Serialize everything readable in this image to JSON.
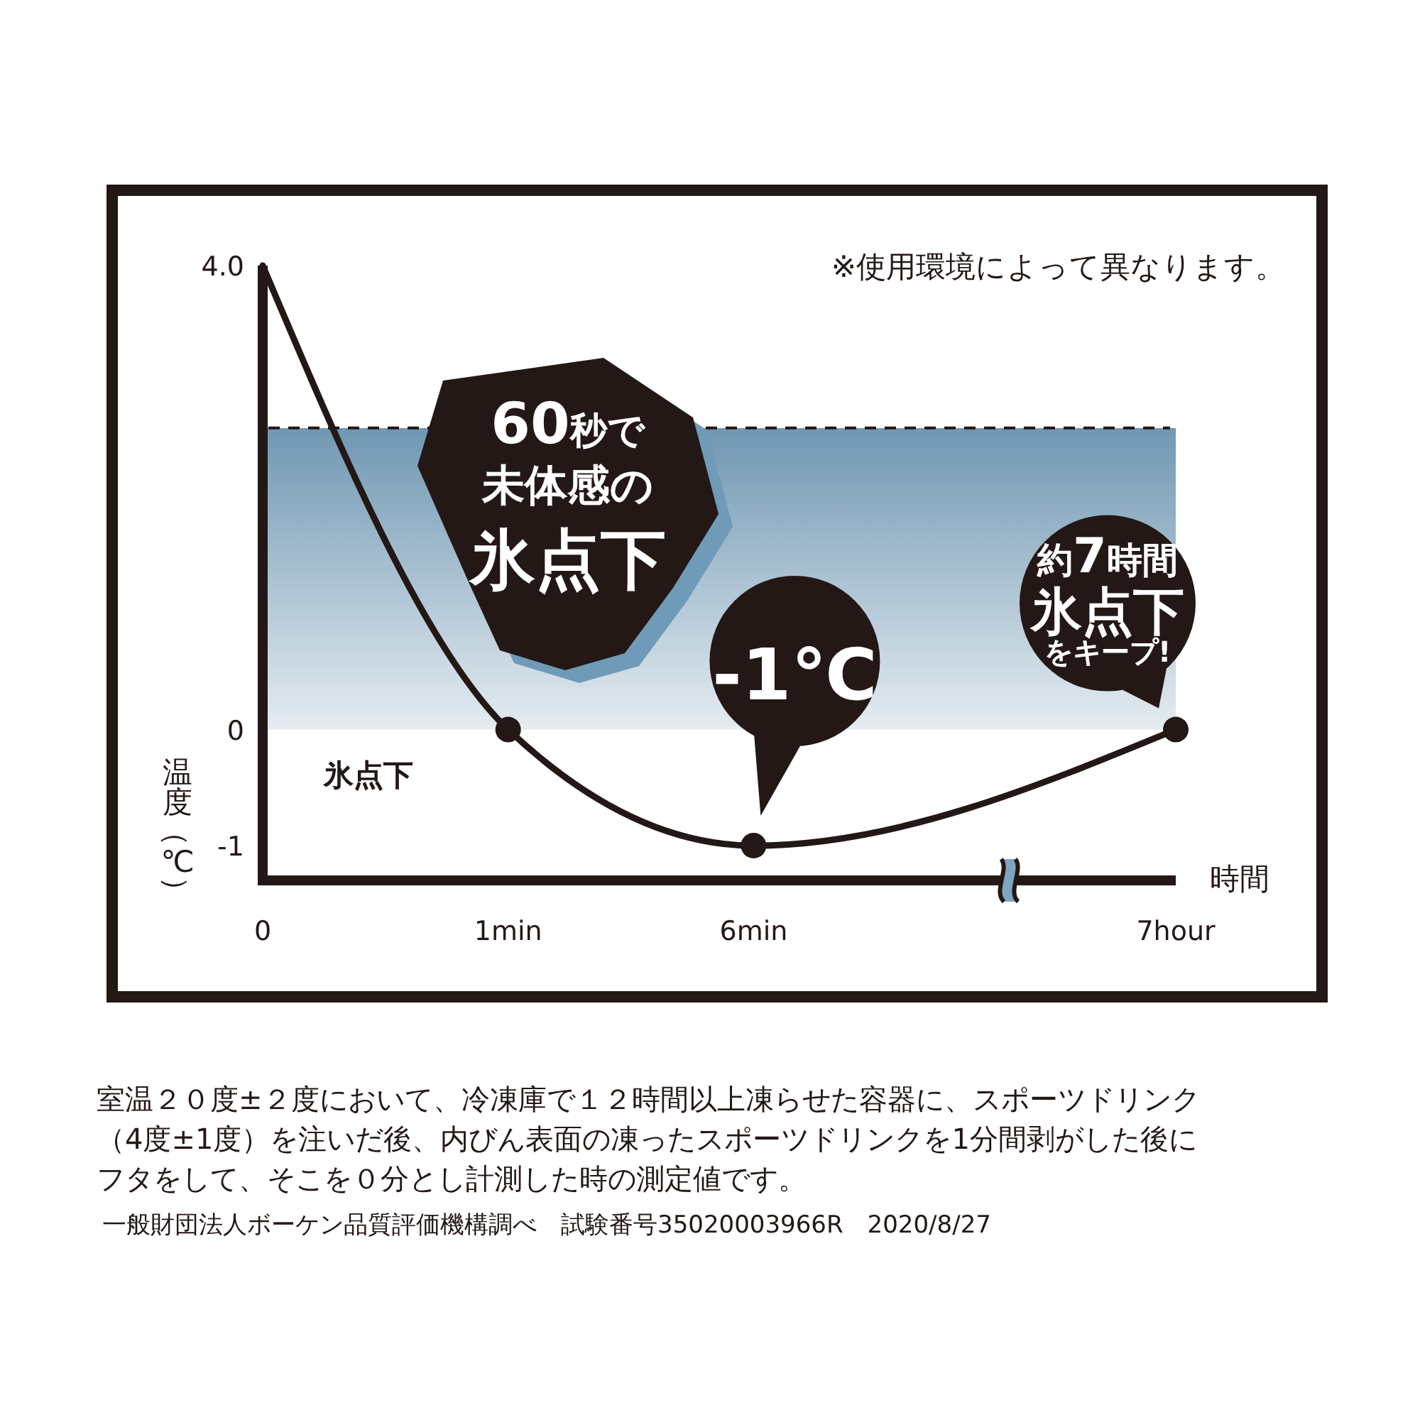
{
  "chart_data": {
    "type": "line",
    "categories": [
      "0",
      "1min",
      "6min",
      "7hour"
    ],
    "series": [
      {
        "type": "line",
        "color": "#231815",
        "values": [
          4.0,
          0,
          -1,
          0
        ]
      },
      {
        "type": "scatter",
        "color": "#231815",
        "x": [
          "1min",
          "6min",
          "7hour"
        ],
        "values": [
          0,
          -1,
          0
        ],
        "marker": "circle"
      }
    ],
    "ylim": [
      -1.3,
      4.0
    ],
    "yticks": [
      {
        "value": 4,
        "label": "4.0"
      },
      0,
      -1
    ],
    "xlabel": "時間",
    "ylabel": "温度（℃）",
    "bands": [
      {
        "axis": "y",
        "from": 0,
        "to": 2.6,
        "color": "#7097b2"
      }
    ],
    "ref_lines": [
      {
        "axis": "y",
        "value": 2.6,
        "line_style": "dashed",
        "color": "#231815"
      }
    ],
    "annotations": [
      "60秒で未体感の氷点下",
      {
        "text": "-1℃",
        "x": "6min",
        "y": -1
      },
      {
        "text": "約7時間氷点下をキープ!",
        "x": "7hour",
        "y": 0
      },
      "※使用環境によって異なります。",
      "氷点下",
      "室温２０度±２度において、冷凍庫で１２時間以上凍らせた容器に、スポーツドリンク（4度±1度）を注いだ後、内びん表面の凍ったスポーツドリンクを1分間剥がした後にフタをして、そこを０分とし計測した時の測定値です。",
      "一般財団法人ボーケン品質評価機構調べ　試験番号35020003966R　2020/8/27"
    ]
  }
}
